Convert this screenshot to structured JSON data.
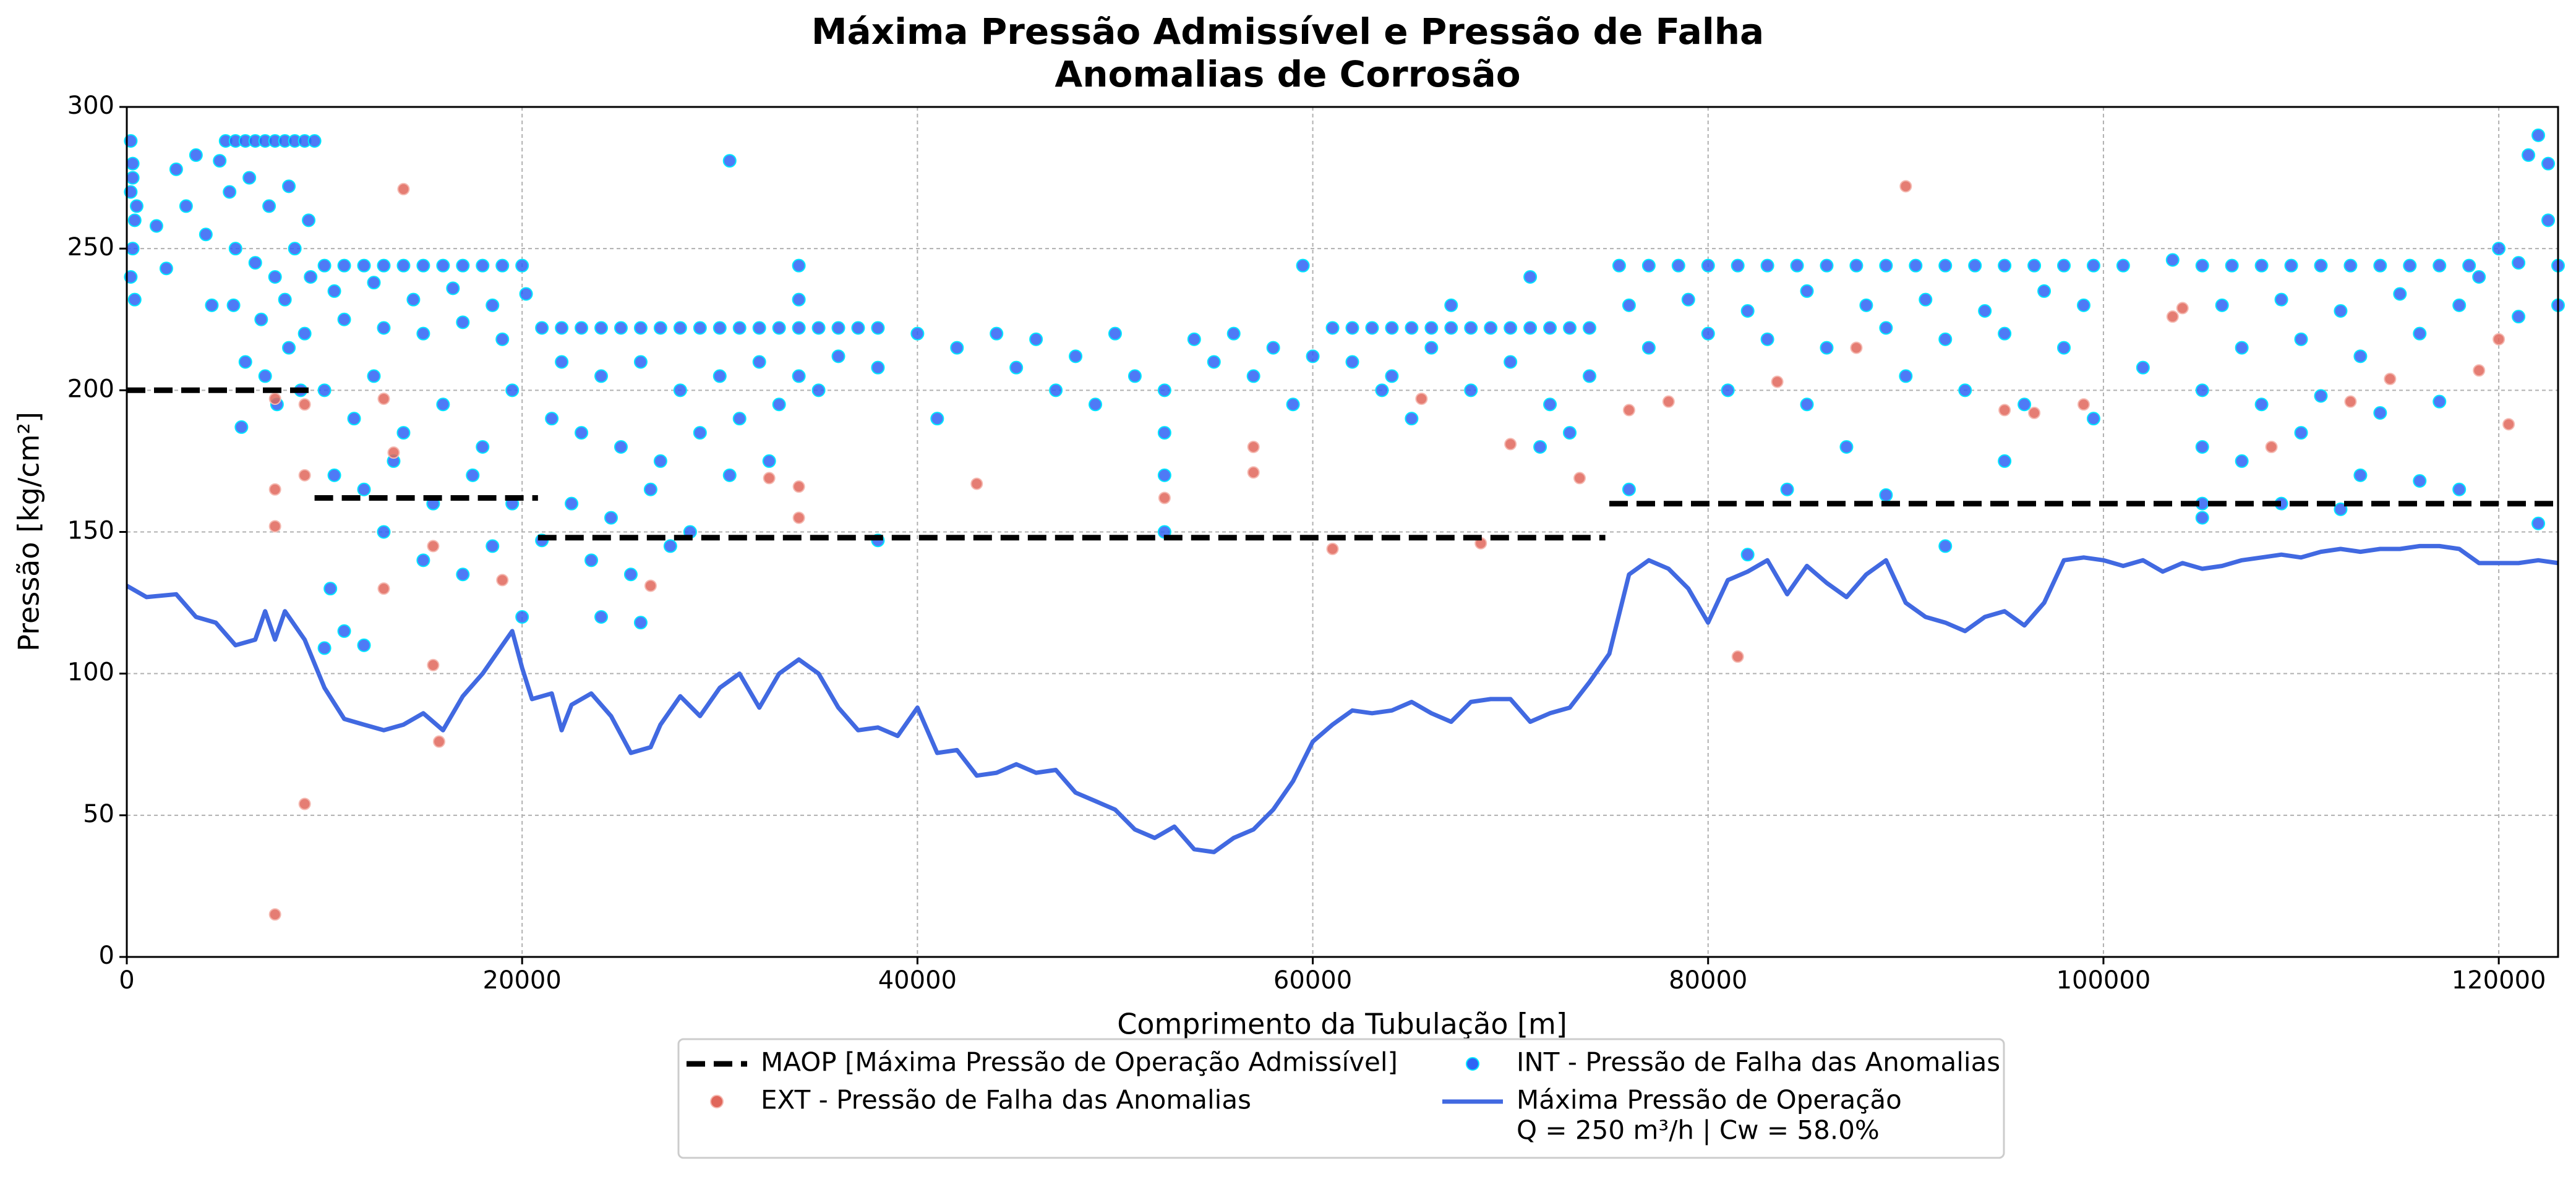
{
  "chart_data": {
    "type": "scatter",
    "title": [
      "Máxima Pressão Admissível e Pressão de Falha",
      "Anomalias de Corrosão"
    ],
    "xlabel": "Comprimento da Tubulação [m]",
    "ylabel": "Pressão [kg/cm²]",
    "xlim": [
      0,
      123000
    ],
    "ylim": [
      0,
      300
    ],
    "xticks": [
      0,
      20000,
      40000,
      60000,
      80000,
      100000,
      120000
    ],
    "yticks": [
      0,
      50,
      100,
      150,
      200,
      250,
      300
    ],
    "grid": true,
    "legend": "below",
    "series": [
      {
        "name": [
          "MAOP [Máxima Pressão de Operação Admissível]"
        ],
        "type": "line",
        "dashed": true,
        "color": "#000000",
        "x": [
          0,
          9500,
          null,
          9500,
          20800,
          null,
          20800,
          74800,
          null,
          75000,
          123000
        ],
        "values": [
          200,
          200,
          null,
          162,
          162,
          null,
          148,
          148,
          null,
          160,
          160
        ]
      },
      {
        "name": [
          "EXT - Pressão de Falha das Anomalias"
        ],
        "type": "scatter",
        "color": "#e0665a",
        "edgecolor": "#f4b8b0",
        "x": [
          7500,
          9000,
          7500,
          7500,
          9000,
          9000,
          7500,
          14000,
          13000,
          13500,
          13000,
          15500,
          15500,
          15800,
          19000,
          26500,
          32500,
          34000,
          34000,
          43000,
          52500,
          57000,
          57000,
          61000,
          65500,
          68500,
          70000,
          73500,
          76000,
          78000,
          81500,
          83500,
          87500,
          90000,
          95000,
          96500,
          99000,
          103500,
          104000,
          108500,
          112500,
          120000,
          120500,
          119000,
          114500
        ],
        "values": [
          197,
          195,
          165,
          152,
          170,
          54,
          15,
          271,
          197,
          178,
          130,
          145,
          103,
          76,
          133,
          131,
          169,
          155,
          166,
          167,
          162,
          180,
          171,
          144,
          197,
          146,
          181,
          169,
          193,
          196,
          106,
          203,
          215,
          272,
          193,
          192,
          195,
          226,
          229,
          180,
          196,
          218,
          188,
          207,
          204
        ]
      },
      {
        "name": [
          "INT - Pressão de Falha das Anomalias"
        ],
        "type": "scatter",
        "color": "#2f63f5",
        "edgecolor": "#00e8ff",
        "x": [
          200,
          300,
          200,
          400,
          300,
          200,
          400,
          300,
          500,
          1500,
          2000,
          2500,
          3000,
          3500,
          4000,
          4300,
          4700,
          5000,
          5500,
          6000,
          6500,
          7000,
          7500,
          8000,
          8500,
          9000,
          9500,
          5200,
          6200,
          7200,
          8200,
          9200,
          5500,
          6500,
          7500,
          8500,
          9300,
          5400,
          6800,
          8000,
          9000,
          6000,
          7000,
          8200,
          5800,
          7600,
          8800,
          10000,
          11000,
          12000,
          13000,
          14000,
          15000,
          16000,
          17000,
          18000,
          19000,
          20000,
          10500,
          12500,
          14500,
          16500,
          18500,
          20200,
          11000,
          13000,
          15000,
          17000,
          19000,
          10000,
          11500,
          12500,
          14000,
          16000,
          18000,
          19500,
          10500,
          12000,
          13500,
          15500,
          17500,
          19500,
          10300,
          11000,
          12000,
          13000,
          15000,
          17000,
          18500,
          10000,
          20000,
          21000,
          22000,
          23000,
          24000,
          25000,
          26000,
          27000,
          28000,
          29000,
          30000,
          31000,
          32000,
          33000,
          34000,
          35000,
          36000,
          37000,
          38000,
          22000,
          24000,
          26000,
          28000,
          30000,
          32000,
          34000,
          36000,
          38000,
          21500,
          23000,
          25000,
          27000,
          29000,
          31000,
          33000,
          35000,
          22500,
          24500,
          26500,
          28500,
          30500,
          32500,
          23500,
          25500,
          27500,
          24000,
          26000,
          30500,
          34000,
          34000,
          21000,
          40000,
          42000,
          44000,
          45000,
          46000,
          48000,
          50000,
          51000,
          52500,
          52500,
          52500,
          52500,
          54000,
          55000,
          56000,
          57000,
          58000,
          59000,
          59500,
          60000,
          61000,
          62000,
          63000,
          64000,
          65000,
          66000,
          67000,
          68000,
          69000,
          70000,
          71000,
          72000,
          73000,
          74000,
          62000,
          64000,
          66000,
          68000,
          70000,
          72000,
          74000,
          67000,
          71000,
          73000,
          71500,
          65000,
          63500,
          38000,
          41000,
          47000,
          49000,
          75500,
          77000,
          78500,
          80000,
          81500,
          83000,
          84500,
          86000,
          87500,
          89000,
          90500,
          92000,
          93500,
          95000,
          96500,
          98000,
          99500,
          76000,
          79000,
          82000,
          85000,
          88000,
          91000,
          94000,
          97000,
          99000,
          77000,
          80000,
          83000,
          86000,
          89000,
          92000,
          95000,
          98000,
          81000,
          85000,
          90000,
          93000,
          96000,
          99500,
          76000,
          82000,
          84000,
          87000,
          89000,
          92000,
          95000,
          101000,
          102000,
          103500,
          105000,
          106500,
          108000,
          109500,
          111000,
          112500,
          114000,
          115500,
          117000,
          118500,
          106000,
          109000,
          112000,
          115000,
          118000,
          107000,
          110000,
          113000,
          116000,
          105000,
          108000,
          111000,
          114000,
          117000,
          105000,
          107000,
          110000,
          113000,
          116000,
          105000,
          105000,
          109000,
          112000,
          118000,
          119000,
          120000,
          121000,
          121500,
          122000,
          122500,
          122500,
          123000,
          123000,
          122000,
          121000
        ],
        "values": [
          288,
          280,
          270,
          260,
          250,
          240,
          232,
          275,
          265,
          258,
          243,
          278,
          265,
          283,
          255,
          230,
          281,
          288,
          288,
          288,
          288,
          288,
          288,
          288,
          288,
          288,
          288,
          270,
          275,
          265,
          272,
          260,
          250,
          245,
          240,
          250,
          240,
          230,
          225,
          232,
          220,
          210,
          205,
          215,
          187,
          195,
          200,
          244,
          244,
          244,
          244,
          244,
          244,
          244,
          244,
          244,
          244,
          244,
          235,
          238,
          232,
          236,
          230,
          234,
          225,
          222,
          220,
          224,
          218,
          200,
          190,
          205,
          185,
          195,
          180,
          200,
          170,
          165,
          175,
          160,
          170,
          160,
          130,
          115,
          110,
          150,
          140,
          135,
          145,
          109,
          120,
          222,
          222,
          222,
          222,
          222,
          222,
          222,
          222,
          222,
          222,
          222,
          222,
          222,
          222,
          222,
          222,
          222,
          222,
          210,
          205,
          210,
          200,
          205,
          210,
          205,
          212,
          208,
          190,
          185,
          180,
          175,
          185,
          190,
          195,
          200,
          160,
          155,
          165,
          150,
          170,
          175,
          140,
          135,
          145,
          120,
          118,
          281,
          244,
          232,
          147,
          220,
          215,
          220,
          208,
          218,
          212,
          220,
          205,
          200,
          185,
          170,
          150,
          218,
          210,
          220,
          205,
          215,
          195,
          244,
          212,
          222,
          222,
          222,
          222,
          222,
          222,
          222,
          222,
          222,
          222,
          222,
          222,
          222,
          222,
          210,
          205,
          215,
          200,
          210,
          195,
          205,
          230,
          240,
          185,
          180,
          190,
          200,
          147,
          190,
          200,
          195,
          244,
          244,
          244,
          244,
          244,
          244,
          244,
          244,
          244,
          244,
          244,
          244,
          244,
          244,
          244,
          244,
          244,
          230,
          232,
          228,
          235,
          230,
          232,
          228,
          235,
          230,
          215,
          220,
          218,
          215,
          222,
          218,
          220,
          215,
          200,
          195,
          205,
          200,
          195,
          190,
          165,
          142,
          165,
          180,
          163,
          145,
          175,
          244,
          208,
          246,
          244,
          244,
          244,
          244,
          244,
          244,
          244,
          244,
          244,
          244,
          230,
          232,
          228,
          234,
          230,
          215,
          218,
          212,
          220,
          200,
          195,
          198,
          192,
          196,
          180,
          175,
          185,
          170,
          168,
          160,
          155,
          160,
          158,
          165,
          240,
          250,
          245,
          283,
          290,
          280,
          260,
          244,
          230,
          153,
          226
        ]
      },
      {
        "name": [
          "Máxima Pressão de Operação",
          "Q = 250 m³/h | Cw = 58.0%"
        ],
        "type": "line",
        "dashed": false,
        "color": "#4169e1",
        "x": [
          0,
          1000,
          2500,
          3500,
          4500,
          5500,
          6500,
          7000,
          7500,
          8000,
          9000,
          10000,
          11000,
          12000,
          13000,
          14000,
          15000,
          16000,
          17000,
          18000,
          19000,
          19500,
          20000,
          20500,
          21500,
          22000,
          22500,
          23500,
          24500,
          25500,
          26500,
          27000,
          28000,
          29000,
          30000,
          31000,
          32000,
          33000,
          34000,
          35000,
          36000,
          37000,
          38000,
          39000,
          40000,
          41000,
          42000,
          43000,
          44000,
          45000,
          46000,
          47000,
          48000,
          49000,
          50000,
          51000,
          52000,
          53000,
          54000,
          55000,
          56000,
          57000,
          58000,
          59000,
          60000,
          61000,
          62000,
          63000,
          64000,
          65000,
          66000,
          67000,
          68000,
          69000,
          70000,
          71000,
          72000,
          73000,
          74000,
          75000,
          76000,
          77000,
          78000,
          79000,
          80000,
          81000,
          82000,
          83000,
          84000,
          85000,
          86000,
          87000,
          88000,
          89000,
          90000,
          91000,
          92000,
          93000,
          94000,
          95000,
          96000,
          97000,
          98000,
          99000,
          100000,
          101000,
          102000,
          103000,
          104000,
          105000,
          106000,
          107000,
          108000,
          109000,
          110000,
          111000,
          112000,
          113000,
          114000,
          115000,
          116000,
          117000,
          118000,
          119000,
          120000,
          121000,
          122000,
          123000
        ],
        "values": [
          131,
          127,
          128,
          120,
          118,
          110,
          112,
          122,
          112,
          122,
          112,
          95,
          84,
          82,
          80,
          82,
          86,
          80,
          92,
          100,
          110,
          115,
          102,
          91,
          93,
          80,
          89,
          93,
          85,
          72,
          74,
          82,
          92,
          85,
          95,
          100,
          88,
          100,
          105,
          100,
          88,
          80,
          81,
          78,
          88,
          72,
          73,
          64,
          65,
          68,
          65,
          66,
          58,
          55,
          52,
          45,
          42,
          46,
          38,
          37,
          42,
          45,
          52,
          62,
          76,
          82,
          87,
          86,
          87,
          90,
          86,
          83,
          90,
          91,
          91,
          83,
          86,
          88,
          97,
          107,
          135,
          140,
          137,
          130,
          118,
          133,
          136,
          140,
          128,
          138,
          132,
          127,
          135,
          140,
          125,
          120,
          118,
          115,
          120,
          122,
          117,
          125,
          140,
          141,
          140,
          138,
          140,
          136,
          139,
          137,
          138,
          140,
          141,
          142,
          141,
          143,
          144,
          143,
          144,
          144,
          145,
          145,
          144,
          139,
          139,
          139,
          140,
          139
        ]
      }
    ]
  }
}
